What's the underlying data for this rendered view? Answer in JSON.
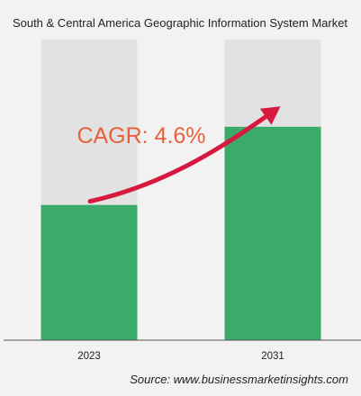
{
  "chart_data": {
    "type": "bar",
    "title": "South & Central America Geographic Information System Market",
    "categories": [
      "2023",
      "2031"
    ],
    "values": [
      0.45,
      0.71
    ],
    "value_unit": "fraction of bar track height",
    "xlabel": "",
    "ylabel": "",
    "grid": false,
    "annotation": {
      "text": "CAGR: 4.6%",
      "from_category": "2023",
      "to_category": "2031"
    },
    "source": "Source: www.businessmarketinsights.com"
  },
  "colors": {
    "background": "#f2f2f2",
    "bar_fill": "#3aab6b",
    "bar_track": "#e2e2e2",
    "arrow": "#d7193f",
    "cagr_text": "#e8603c",
    "axis": "#555555"
  }
}
